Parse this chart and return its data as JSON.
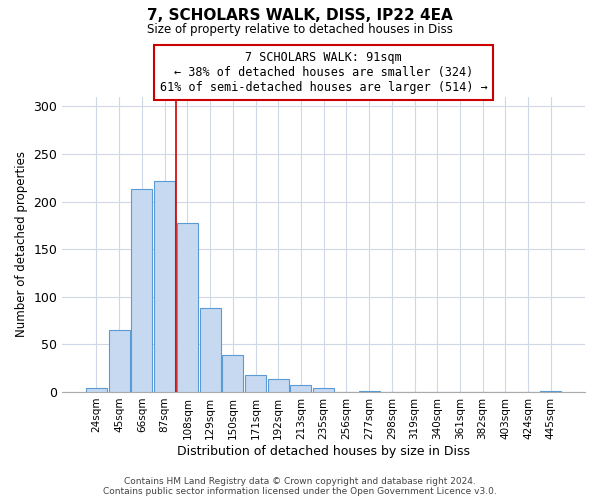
{
  "title": "7, SCHOLARS WALK, DISS, IP22 4EA",
  "subtitle": "Size of property relative to detached houses in Diss",
  "xlabel": "Distribution of detached houses by size in Diss",
  "ylabel": "Number of detached properties",
  "bar_labels": [
    "24sqm",
    "45sqm",
    "66sqm",
    "87sqm",
    "108sqm",
    "129sqm",
    "150sqm",
    "171sqm",
    "192sqm",
    "213sqm",
    "235sqm",
    "256sqm",
    "277sqm",
    "298sqm",
    "319sqm",
    "340sqm",
    "361sqm",
    "382sqm",
    "403sqm",
    "424sqm",
    "445sqm"
  ],
  "bar_values": [
    4,
    65,
    213,
    222,
    177,
    88,
    39,
    18,
    14,
    7,
    4,
    0,
    1,
    0,
    0,
    0,
    0,
    0,
    0,
    0,
    1
  ],
  "bar_color": "#c6d9f0",
  "bar_edge_color": "#5b9bd5",
  "vline_x": 3.5,
  "vline_color": "#cc0000",
  "annotation_line1": "7 SCHOLARS WALK: 91sqm",
  "annotation_line2": "← 38% of detached houses are smaller (324)",
  "annotation_line3": "61% of semi-detached houses are larger (514) →",
  "annotation_box_color": "#cc0000",
  "footer_text": "Contains HM Land Registry data © Crown copyright and database right 2024.\nContains public sector information licensed under the Open Government Licence v3.0.",
  "ylim": [
    0,
    310
  ],
  "yticks": [
    0,
    50,
    100,
    150,
    200,
    250,
    300
  ],
  "background_color": "#ffffff",
  "grid_color": "#d0d8e8"
}
